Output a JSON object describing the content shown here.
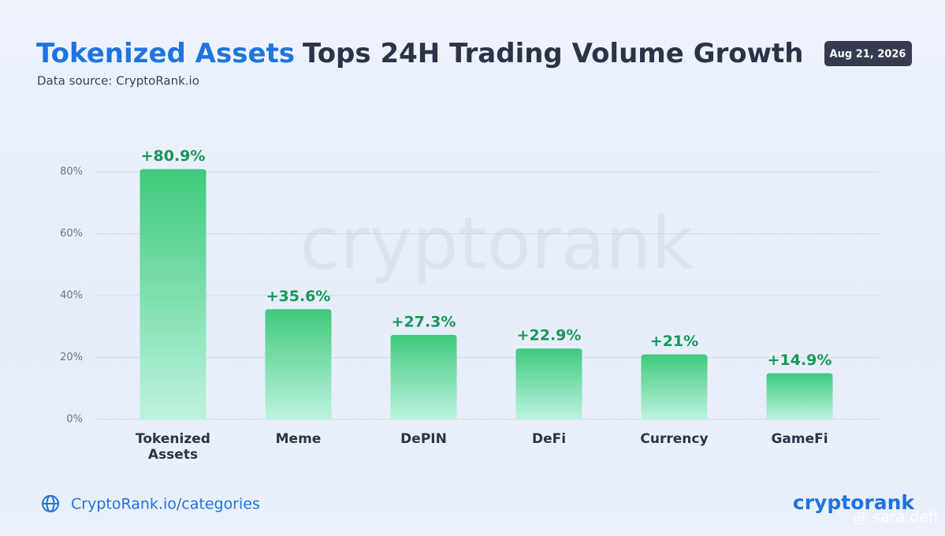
{
  "chart_data": {
    "type": "bar",
    "title_highlight": "Tokenized Assets",
    "title": "Tops 24H Trading Volume Growth",
    "subtitle": "Data source: CryptoRank.io",
    "date": "Aug 21, 2026",
    "categories": [
      "Tokenized Assets",
      "Meme",
      "DePIN",
      "DeFi",
      "Currency",
      "GameFi"
    ],
    "values": [
      80.9,
      35.6,
      27.3,
      22.9,
      21,
      14.9
    ],
    "value_labels": [
      "+80.9%",
      "+35.6%",
      "+27.3%",
      "+22.9%",
      "+21%",
      "+14.9%"
    ],
    "color": "#3fca7c",
    "ylim": [
      0,
      80
    ],
    "yticks": [
      {
        "value": 0,
        "label": "0%"
      },
      {
        "value": 20,
        "label": "20%"
      },
      {
        "value": 40,
        "label": "40%"
      },
      {
        "value": 60,
        "label": "60%"
      },
      {
        "value": 80,
        "label": "80%"
      }
    ],
    "grid": true,
    "footer_link": "CryptoRank.io/categories",
    "logo": "cryptorank",
    "watermark": "cryptorank",
    "credit": "@ sara.defi"
  }
}
